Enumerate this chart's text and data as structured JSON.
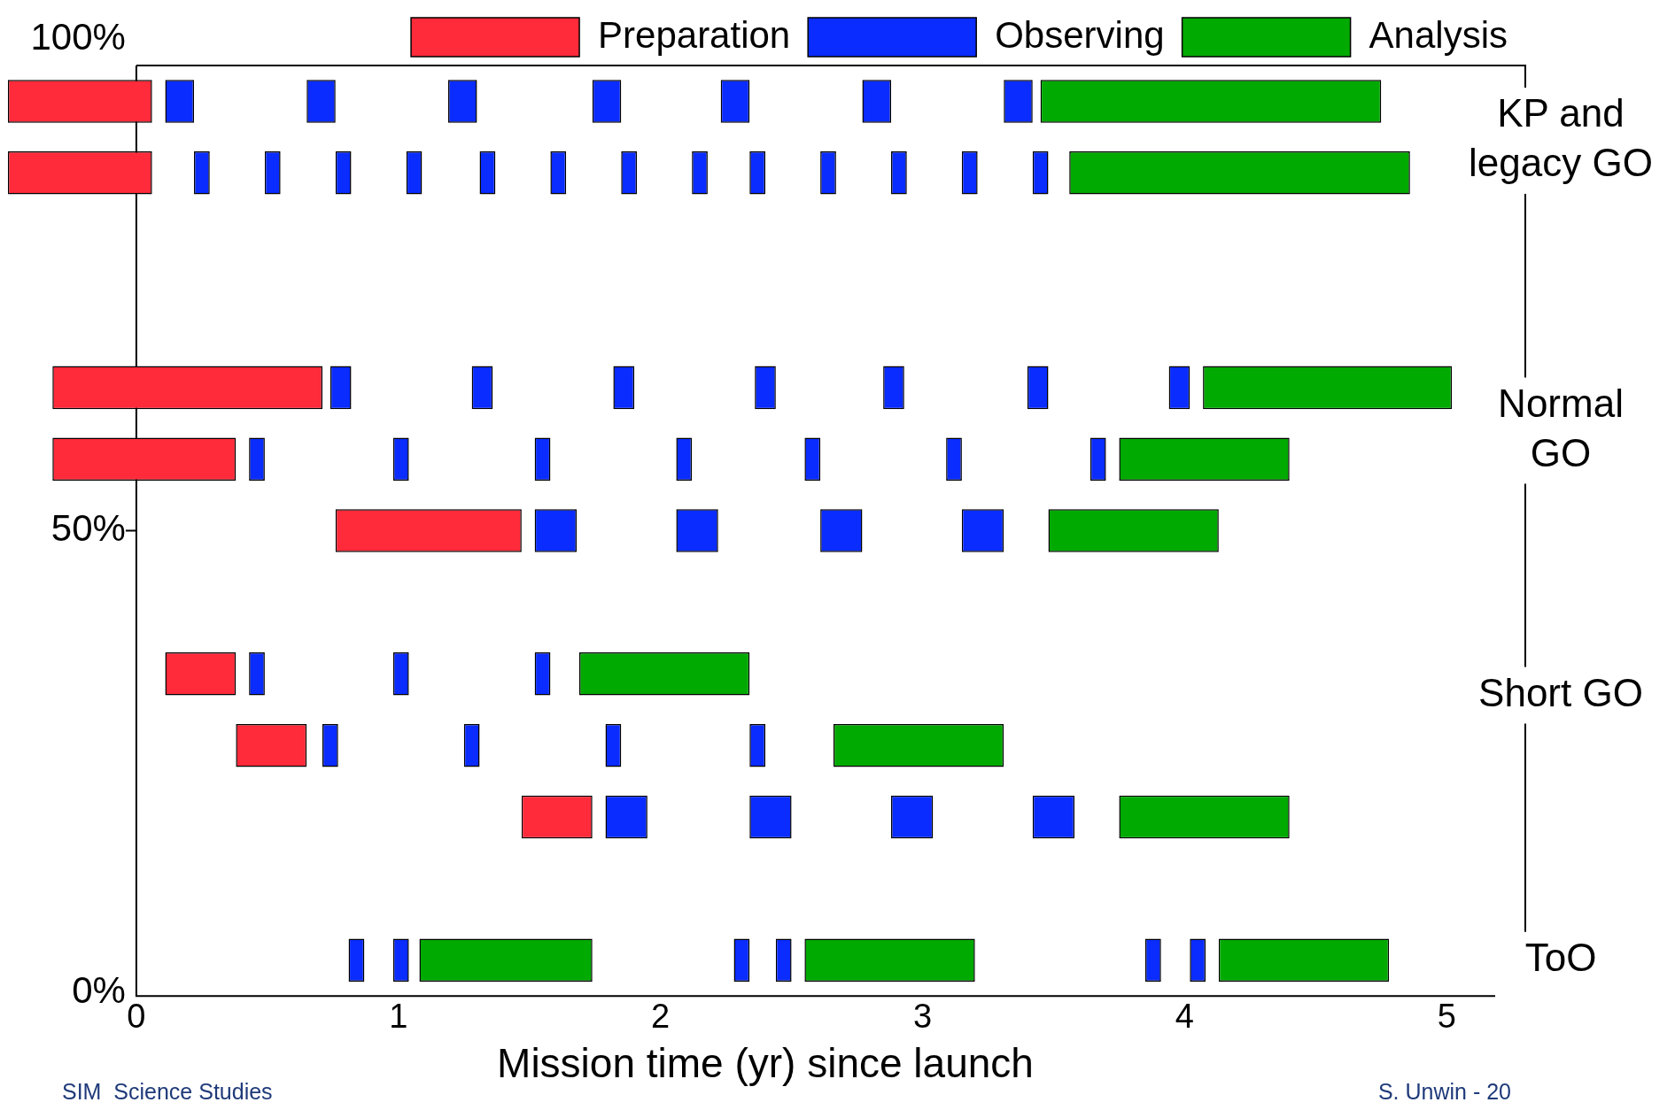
{
  "chart_data": {
    "type": "bar",
    "orientation": "horizontal",
    "xlabel": "Mission time (yr) since launch",
    "xlim": [
      -0.5,
      5.3
    ],
    "xticks": [
      0,
      1,
      2,
      3,
      4,
      5
    ],
    "grid": false,
    "legend": "top",
    "categories": [
      null,
      null,
      null,
      null,
      null,
      null,
      null,
      null,
      null,
      null,
      null,
      null,
      null
    ],
    "annotations": [
      "100%",
      "50%",
      "0%",
      "KP and legacy GO",
      "Normal GO",
      "Short GO",
      "ToO",
      "SIM  Science Studies",
      "S. Unwin - 20"
    ],
    "series": [
      {
        "name": "Preparation",
        "color": "#ff2a3a",
        "base": [
          -0.49,
          -0.49,
          null,
          null,
          -0.32,
          -0.32,
          0.76,
          null,
          0.11,
          0.38,
          1.47,
          null,
          null
        ],
        "values": [
          0.55,
          0.55,
          null,
          null,
          1.03,
          0.7,
          0.71,
          null,
          0.27,
          0.27,
          0.27,
          null,
          null
        ]
      },
      {
        "name": "Observing",
        "color": "#0a2cff",
        "base": [
          0.11,
          0.22,
          null,
          null,
          0.74,
          0.43,
          1.52,
          null,
          0.43,
          0.71,
          1.79,
          null,
          0.81
        ],
        "values": [
          0.11,
          0.06,
          null,
          null,
          0.08,
          0.06,
          0.16,
          null,
          0.06,
          0.06,
          0.16,
          null,
          0.06
        ]
      },
      {
        "color": "#0a2cff",
        "base": [
          0.65,
          0.49,
          null,
          null,
          1.28,
          0.98,
          2.06,
          null,
          0.98,
          1.25,
          2.34,
          null,
          0.98
        ],
        "values": [
          0.11,
          0.06,
          null,
          null,
          0.08,
          0.06,
          0.16,
          null,
          0.06,
          0.06,
          0.16,
          null,
          0.06
        ]
      },
      {
        "color": "#0a2cff",
        "base": [
          1.19,
          0.76,
          null,
          null,
          1.82,
          1.52,
          2.61,
          null,
          1.52,
          1.79,
          2.88,
          null,
          2.28
        ],
        "values": [
          0.11,
          0.06,
          null,
          null,
          0.08,
          0.06,
          0.16,
          null,
          0.06,
          0.06,
          0.16,
          null,
          0.06
        ]
      },
      {
        "color": "#0a2cff",
        "base": [
          1.74,
          1.03,
          null,
          null,
          2.36,
          2.06,
          3.15,
          null,
          null,
          2.34,
          3.42,
          null,
          2.44
        ],
        "values": [
          0.11,
          0.06,
          null,
          null,
          0.08,
          0.06,
          0.16,
          null,
          null,
          0.06,
          0.16,
          null,
          0.06
        ]
      },
      {
        "color": "#0a2cff",
        "base": [
          2.23,
          1.31,
          null,
          null,
          2.85,
          2.55,
          null,
          null,
          null,
          null,
          null,
          null,
          3.85
        ],
        "values": [
          0.11,
          0.06,
          null,
          null,
          0.08,
          0.06,
          null,
          null,
          null,
          null,
          null,
          null,
          0.06
        ]
      },
      {
        "color": "#0a2cff",
        "base": [
          2.77,
          1.58,
          null,
          null,
          3.4,
          3.09,
          null,
          null,
          null,
          null,
          null,
          null,
          4.02
        ],
        "values": [
          0.11,
          0.06,
          null,
          null,
          0.08,
          0.06,
          null,
          null,
          null,
          null,
          null,
          null,
          0.06
        ]
      },
      {
        "color": "#0a2cff",
        "base": [
          3.31,
          1.85,
          null,
          null,
          3.94,
          3.64,
          null,
          null,
          null,
          null,
          null,
          null,
          null
        ],
        "values": [
          0.11,
          0.06,
          null,
          null,
          0.08,
          0.06,
          null,
          null,
          null,
          null,
          null,
          null,
          null
        ]
      },
      {
        "color": "#0a2cff",
        "base": [
          null,
          2.12,
          null,
          null,
          null,
          null,
          null,
          null,
          null,
          null,
          null,
          null,
          null
        ],
        "values": [
          null,
          0.06,
          null,
          null,
          null,
          null,
          null,
          null,
          null,
          null,
          null,
          null,
          null
        ]
      },
      {
        "color": "#0a2cff",
        "base": [
          null,
          2.34,
          null,
          null,
          null,
          null,
          null,
          null,
          null,
          null,
          null,
          null,
          null
        ],
        "values": [
          null,
          0.06,
          null,
          null,
          null,
          null,
          null,
          null,
          null,
          null,
          null,
          null,
          null
        ]
      },
      {
        "color": "#0a2cff",
        "base": [
          null,
          2.61,
          null,
          null,
          null,
          null,
          null,
          null,
          null,
          null,
          null,
          null,
          null
        ],
        "values": [
          null,
          0.06,
          null,
          null,
          null,
          null,
          null,
          null,
          null,
          null,
          null,
          null,
          null
        ]
      },
      {
        "color": "#0a2cff",
        "base": [
          null,
          2.88,
          null,
          null,
          null,
          null,
          null,
          null,
          null,
          null,
          null,
          null,
          null
        ],
        "values": [
          null,
          0.06,
          null,
          null,
          null,
          null,
          null,
          null,
          null,
          null,
          null,
          null,
          null
        ]
      },
      {
        "color": "#0a2cff",
        "base": [
          null,
          3.15,
          null,
          null,
          null,
          null,
          null,
          null,
          null,
          null,
          null,
          null,
          null
        ],
        "values": [
          null,
          0.06,
          null,
          null,
          null,
          null,
          null,
          null,
          null,
          null,
          null,
          null,
          null
        ]
      },
      {
        "color": "#0a2cff",
        "base": [
          null,
          3.42,
          null,
          null,
          null,
          null,
          null,
          null,
          null,
          null,
          null,
          null,
          null
        ],
        "values": [
          null,
          0.06,
          null,
          null,
          null,
          null,
          null,
          null,
          null,
          null,
          null,
          null,
          null
        ]
      },
      {
        "name": "Analysis",
        "color": "#00aa00",
        "base": [
          3.45,
          3.56,
          null,
          null,
          4.07,
          3.75,
          3.48,
          null,
          1.69,
          2.66,
          3.75,
          null,
          1.08
        ],
        "values": [
          1.3,
          1.3,
          null,
          null,
          0.95,
          0.65,
          0.65,
          null,
          0.65,
          0.65,
          0.65,
          null,
          0.66
        ]
      },
      {
        "color": "#00aa00",
        "base": [
          null,
          null,
          null,
          null,
          null,
          null,
          null,
          null,
          null,
          null,
          null,
          null,
          2.55
        ],
        "values": [
          null,
          null,
          null,
          null,
          null,
          null,
          null,
          null,
          null,
          null,
          null,
          null,
          0.65
        ]
      },
      {
        "color": "#00aa00",
        "base": [
          null,
          null,
          null,
          null,
          null,
          null,
          null,
          null,
          null,
          null,
          null,
          null,
          4.13
        ],
        "values": [
          null,
          null,
          null,
          null,
          null,
          null,
          null,
          null,
          null,
          null,
          null,
          null,
          0.65
        ]
      }
    ]
  }
}
